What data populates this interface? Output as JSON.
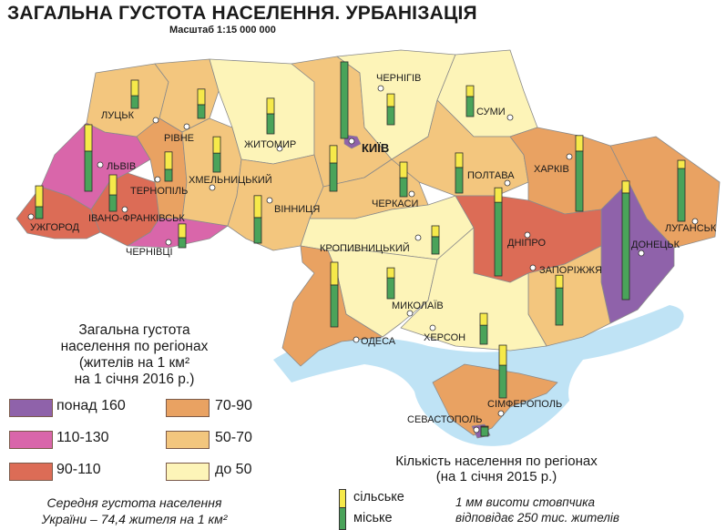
{
  "title": "ЗАГАЛЬНА ГУСТОТА НАСЕЛЕННЯ. УРБАНІЗАЦІЯ",
  "scale": "Масштаб 1:15 000 000",
  "colors": {
    "over_160": "#8f62aa",
    "d110_130": "#d966aa",
    "d90_110": "#dc6c56",
    "d70_90": "#e9a262",
    "d50_70": "#f3c67e",
    "under_50": "#fdf4b8",
    "sea": "#bfe3f5",
    "rural": "#f6e94a",
    "urban": "#4aa35a"
  },
  "density_legend": {
    "title_lines": [
      "Загальна густота",
      "населення по регіонах",
      "(жителів на 1 км²",
      "на 1 січня 2016 р.)"
    ],
    "classes": [
      {
        "label": "понад 160",
        "color": "#8f62aa"
      },
      {
        "label": "110-130",
        "color": "#d966aa"
      },
      {
        "label": "90-110",
        "color": "#dc6c56"
      },
      {
        "label": "70-90",
        "color": "#e9a262"
      },
      {
        "label": "50-70",
        "color": "#f3c67e"
      },
      {
        "label": "до 50",
        "color": "#fdf4b8"
      }
    ],
    "average_lines": [
      "Середня густота населення",
      "України –  74,4 жителя на 1 км²"
    ]
  },
  "population_legend": {
    "title_lines": [
      "Кількість населення по регіонах",
      "(на 1 січня 2015 р.)"
    ],
    "rural_label": "сільське",
    "urban_label": "міське",
    "note_lines": [
      "1 мм висоти стовпчика",
      "відповідає 250 тис. жителів"
    ]
  },
  "cities": [
    {
      "name": "ЛУЦЬК"
    },
    {
      "name": "РІВНЕ"
    },
    {
      "name": "ЖИТОМИР"
    },
    {
      "name": "ЛЬВІВ"
    },
    {
      "name": "ТЕРНОПІЛЬ"
    },
    {
      "name": "ХМЕЛЬНИЦЬКИЙ"
    },
    {
      "name": "ВІННИЦЯ"
    },
    {
      "name": "ІВАНО-ФРАНКІВСЬК"
    },
    {
      "name": "УЖГОРОД"
    },
    {
      "name": "ЧЕРНІВЦІ"
    },
    {
      "name": "КИЇВ"
    },
    {
      "name": "ЧЕРНІГІВ"
    },
    {
      "name": "СУМИ"
    },
    {
      "name": "ПОЛТАВА"
    },
    {
      "name": "ЧЕРКАСИ"
    },
    {
      "name": "ХАРКІВ"
    },
    {
      "name": "ДНІПРО"
    },
    {
      "name": "ЛУГАНСЬК"
    },
    {
      "name": "ДОНЕЦЬК"
    },
    {
      "name": "ЗАПОРІЖЖЯ"
    },
    {
      "name": "КРОПИВНИЦЬКИЙ"
    },
    {
      "name": "МИКОЛАЇВ"
    },
    {
      "name": "ОДЕСА"
    },
    {
      "name": "ХЕРСОН"
    },
    {
      "name": "СІМФЕРОПОЛЬ"
    },
    {
      "name": "СЕВАСТОПОЛЬ"
    }
  ],
  "regions": [
    {
      "id": "zakarpattia",
      "density_class": "90-110",
      "rural_thousands": 790,
      "urban_thousands": 450
    },
    {
      "id": "lviv",
      "density_class": "110-130",
      "rural_thousands": 1000,
      "urban_thousands": 1520
    },
    {
      "id": "ivano-frankivsk",
      "density_class": "90-110",
      "rural_thousands": 760,
      "urban_thousands": 620
    },
    {
      "id": "volyn",
      "density_class": "50-70",
      "rural_thousands": 590,
      "urban_thousands": 480
    },
    {
      "id": "rivne",
      "density_class": "50-70",
      "rural_thousands": 590,
      "urban_thousands": 520
    },
    {
      "id": "ternopil",
      "density_class": "70-90",
      "rural_thousands": 660,
      "urban_thousands": 450
    },
    {
      "id": "chernivtsi",
      "density_class": "110-130",
      "rural_thousands": 520,
      "urban_thousands": 380
    },
    {
      "id": "khmelnytskyi",
      "density_class": "50-70",
      "rural_thousands": 620,
      "urban_thousands": 720
    },
    {
      "id": "zhytomyr",
      "density_class": "до 50",
      "rural_thousands": 590,
      "urban_thousands": 760
    },
    {
      "id": "vinnytsia",
      "density_class": "50-70",
      "rural_thousands": 830,
      "urban_thousands": 970
    },
    {
      "id": "kyiv-oblast",
      "density_class": "50-70",
      "rural_thousands": 660,
      "urban_thousands": 1070
    },
    {
      "id": "kyiv-city",
      "density_class": "понад 160",
      "rural_thousands": 0,
      "urban_thousands": 2900
    },
    {
      "id": "chernihiv",
      "density_class": "до 50",
      "rural_thousands": 480,
      "urban_thousands": 690
    },
    {
      "id": "sumy",
      "density_class": "до 50",
      "rural_thousands": 410,
      "urban_thousands": 760
    },
    {
      "id": "poltava",
      "density_class": "50-70",
      "rural_thousands": 550,
      "urban_thousands": 970
    },
    {
      "id": "cherkasy",
      "density_class": "50-70",
      "rural_thousands": 590,
      "urban_thousands": 720
    },
    {
      "id": "kirovohrad",
      "density_class": "до 50",
      "rural_thousands": 410,
      "urban_thousands": 660
    },
    {
      "id": "kharkiv",
      "density_class": "70-90",
      "rural_thousands": 590,
      "urban_thousands": 2280
    },
    {
      "id": "luhansk",
      "density_class": "70-90",
      "rural_thousands": 310,
      "urban_thousands": 2000
    },
    {
      "id": "donetsk",
      "density_class": "понад 160",
      "rural_thousands": 450,
      "urban_thousands": 4040
    },
    {
      "id": "dnipropetrovsk",
      "density_class": "90-110",
      "rural_thousands": 550,
      "urban_thousands": 2790
    },
    {
      "id": "zaporizhzhia",
      "density_class": "50-70",
      "rural_thousands": 480,
      "urban_thousands": 1410
    },
    {
      "id": "mykolaiv",
      "density_class": "до 50",
      "rural_thousands": 380,
      "urban_thousands": 790
    },
    {
      "id": "kherson",
      "density_class": "до 50",
      "rural_thousands": 450,
      "urban_thousands": 720
    },
    {
      "id": "odesa",
      "density_class": "70-90",
      "rural_thousands": 860,
      "urban_thousands": 1590
    },
    {
      "id": "crimea",
      "density_class": "70-90",
      "rural_thousands": 760,
      "urban_thousands": 1240
    },
    {
      "id": "sevastopol",
      "density_class": "понад 160",
      "rural_thousands": 30,
      "urban_thousands": 350
    }
  ]
}
